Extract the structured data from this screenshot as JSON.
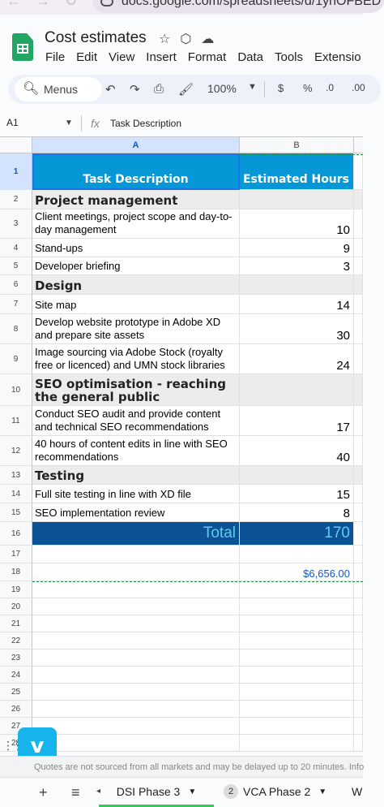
{
  "browser": {
    "url": "docs.google.com/spreadsheets/d/1ynOFBED"
  },
  "app": {
    "title": "Cost estimates",
    "menu": [
      "File",
      "Edit",
      "View",
      "Insert",
      "Format",
      "Data",
      "Tools",
      "Extensio"
    ]
  },
  "toolbar": {
    "search_label": "Menus",
    "zoom": "100%",
    "currency": "$",
    "percent": "%",
    "decrease_decimal": ".0",
    "increase_decimal": ".00"
  },
  "formula_bar": {
    "cell_ref": "A1",
    "fx": "fx",
    "content": "Task Description"
  },
  "columns": [
    "A",
    "B"
  ],
  "rows": [
    {
      "n": "1",
      "a": "Task Description",
      "b": "Estimated Hours",
      "kind": "header"
    },
    {
      "n": "2",
      "a": "Project management",
      "b": "",
      "kind": "section"
    },
    {
      "n": "3",
      "a": "Client meetings, project scope and day-to-day management",
      "b": "10",
      "kind": "item"
    },
    {
      "n": "4",
      "a": "Stand-ups",
      "b": "9",
      "kind": "item"
    },
    {
      "n": "5",
      "a": "Developer briefing",
      "b": "3",
      "kind": "item"
    },
    {
      "n": "6",
      "a": "Design",
      "b": "",
      "kind": "section"
    },
    {
      "n": "7",
      "a": "Site map",
      "b": "14",
      "kind": "item"
    },
    {
      "n": "8",
      "a": "Develop website prototype in Adobe XD and prepare site assets",
      "b": "30",
      "kind": "item"
    },
    {
      "n": "9",
      "a": "Image sourcing via Adobe Stock (royalty free or licenced) and UMN stock libraries",
      "b": "24",
      "kind": "item"
    },
    {
      "n": "10",
      "a": "SEO optimisation - reaching the general public",
      "b": "",
      "kind": "section"
    },
    {
      "n": "11",
      "a": "Conduct SEO audit and provide content and technical SEO recommendations",
      "b": "17",
      "kind": "item"
    },
    {
      "n": "12",
      "a": "40 hours of content edits in line with SEO recommendations",
      "b": "40",
      "kind": "item"
    },
    {
      "n": "13",
      "a": "Testing",
      "b": "",
      "kind": "section"
    },
    {
      "n": "14",
      "a": "Full site testing in line with XD file",
      "b": "15",
      "kind": "item"
    },
    {
      "n": "15",
      "a": "SEO implementation review",
      "b": "8",
      "kind": "item"
    },
    {
      "n": "16",
      "a": "Total",
      "b": "170",
      "kind": "total"
    },
    {
      "n": "17",
      "a": "",
      "b": "",
      "kind": "empty"
    },
    {
      "n": "18",
      "a": "",
      "b": "$6,656.00",
      "kind": "money"
    },
    {
      "n": "19",
      "a": "",
      "b": "",
      "kind": "empty"
    },
    {
      "n": "20",
      "a": "",
      "b": "",
      "kind": "empty"
    },
    {
      "n": "21",
      "a": "",
      "b": "",
      "kind": "empty"
    },
    {
      "n": "22",
      "a": "",
      "b": "",
      "kind": "empty"
    },
    {
      "n": "23",
      "a": "",
      "b": "",
      "kind": "empty"
    },
    {
      "n": "24",
      "a": "",
      "b": "",
      "kind": "empty"
    },
    {
      "n": "25",
      "a": "",
      "b": "",
      "kind": "empty"
    },
    {
      "n": "26",
      "a": "",
      "b": "",
      "kind": "empty"
    },
    {
      "n": "27",
      "a": "",
      "b": "",
      "kind": "empty"
    },
    {
      "n": "28",
      "a": "",
      "b": "",
      "kind": "empty"
    }
  ],
  "footer_note": "Quotes are not sourced from all markets and may be delayed up to 20 minutes. Info",
  "vimeo_label": "v",
  "sheet_tabs": [
    {
      "label": "DSI Phase 3",
      "active": true
    },
    {
      "label": "VCA Phase 2",
      "badge": "2"
    },
    {
      "label": "W"
    }
  ],
  "colors": {
    "header_bg": "#0597d6",
    "total_bg": "#0b5394",
    "total_text": "#62c9f0",
    "section_bg": "#ececec",
    "money_text": "#1155cc"
  }
}
